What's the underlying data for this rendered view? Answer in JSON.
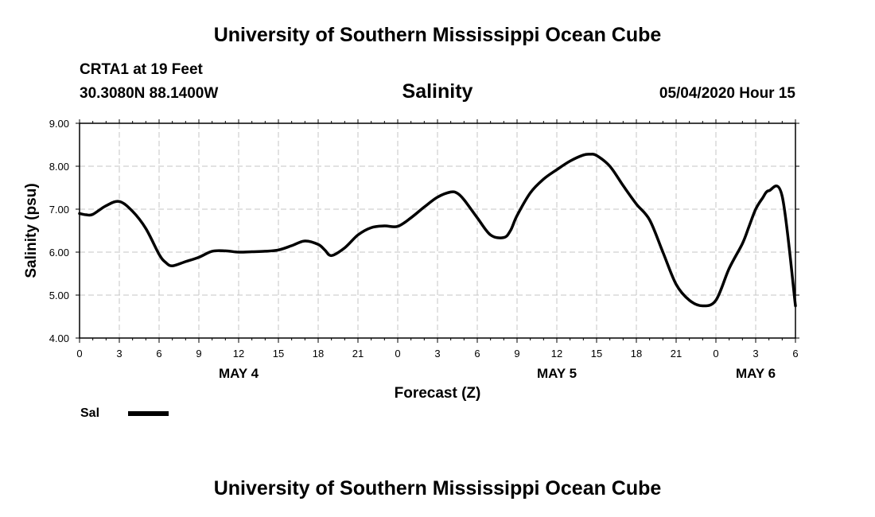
{
  "header": {
    "title": "University of Southern Mississippi Ocean Cube",
    "station": "CRTA1 at 19 Feet",
    "coords": "30.3080N 88.1400W",
    "plot_title": "Salinity",
    "timestamp": "05/04/2020 Hour 15"
  },
  "footer": {
    "title": "University of Southern Mississippi Ocean Cube"
  },
  "legend": {
    "label": "Sal",
    "color": "#000000"
  },
  "chart_data": {
    "type": "line",
    "xlabel": "Forecast (Z)",
    "ylabel": "Salinity (psu)",
    "ylim": [
      4.0,
      9.0
    ],
    "yticks": [
      "4.00",
      "5.00",
      "6.00",
      "7.00",
      "8.00",
      "9.00"
    ],
    "xlim": [
      0,
      54
    ],
    "xticks": [
      "0",
      "3",
      "6",
      "9",
      "12",
      "15",
      "18",
      "21",
      "0",
      "3",
      "6",
      "9",
      "12",
      "15",
      "18",
      "21",
      "0",
      "3",
      "6"
    ],
    "day_labels": [
      {
        "label": "MAY 4",
        "hour": 12
      },
      {
        "label": "MAY 5",
        "hour": 36
      },
      {
        "label": "MAY 6",
        "hour": 51
      }
    ],
    "grid": true,
    "series": [
      {
        "name": "Sal",
        "x": [
          0,
          0.5,
          1,
          2,
          3,
          4,
          5,
          6,
          6.5,
          7,
          8,
          9,
          10,
          11,
          12,
          13,
          14,
          15,
          16,
          17,
          18,
          18.5,
          19,
          20,
          21,
          22,
          23,
          24,
          25,
          26,
          27,
          28,
          28.5,
          29,
          30,
          31,
          32,
          32.5,
          33,
          34,
          35,
          36,
          37,
          38,
          38.5,
          39,
          40,
          41,
          42,
          43,
          44,
          45,
          46,
          47,
          48,
          49,
          50,
          50.5,
          51,
          51.5,
          52,
          53,
          54
        ],
        "y": [
          6.9,
          6.87,
          6.88,
          7.08,
          7.18,
          6.95,
          6.55,
          5.95,
          5.76,
          5.68,
          5.78,
          5.88,
          6.02,
          6.03,
          6.0,
          6.01,
          6.02,
          6.05,
          6.15,
          6.26,
          6.18,
          6.05,
          5.92,
          6.1,
          6.4,
          6.57,
          6.61,
          6.6,
          6.8,
          7.05,
          7.28,
          7.4,
          7.37,
          7.22,
          6.8,
          6.4,
          6.34,
          6.5,
          6.85,
          7.38,
          7.7,
          7.92,
          8.12,
          8.26,
          8.28,
          8.25,
          8.0,
          7.55,
          7.12,
          6.75,
          6.0,
          5.25,
          4.88,
          4.75,
          4.88,
          5.62,
          6.2,
          6.6,
          7.0,
          7.25,
          7.43,
          7.3,
          4.75
        ]
      }
    ]
  }
}
